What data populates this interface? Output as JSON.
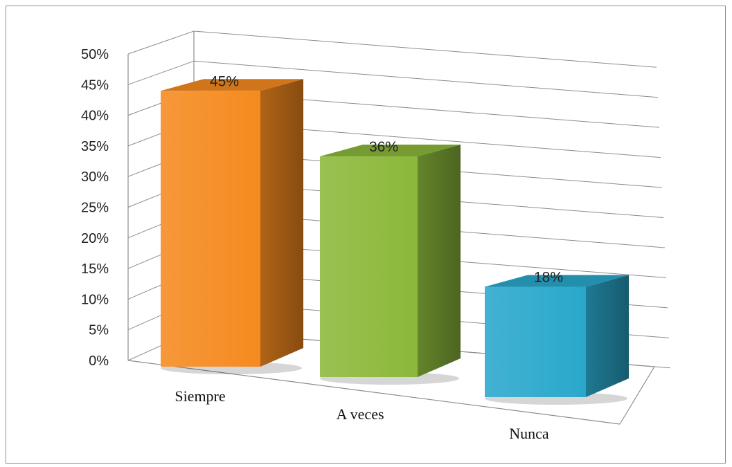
{
  "chart_data": {
    "type": "bar",
    "categories": [
      "Siempre",
      "A veces",
      "Nunca"
    ],
    "values": [
      0.45,
      0.36,
      0.18
    ],
    "data_labels": [
      "45%",
      "36%",
      "18%"
    ],
    "ylim": [
      0,
      0.5
    ],
    "yticks": [
      "0%",
      "5%",
      "10%",
      "15%",
      "20%",
      "25%",
      "30%",
      "35%",
      "40%",
      "45%",
      "50%"
    ],
    "title": "",
    "xlabel": "",
    "ylabel": "",
    "grid": true,
    "style": "3d-column",
    "colors": [
      "#f58a1f",
      "#8bb83a",
      "#29a8cc"
    ]
  }
}
